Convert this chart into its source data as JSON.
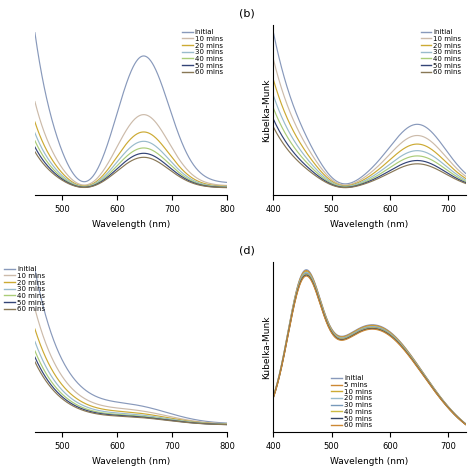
{
  "labels_ab": [
    "initial",
    "10 mins",
    "20 mins",
    "30 mins",
    "40 mins",
    "50 mins",
    "60 mins"
  ],
  "labels_d": [
    "initial",
    "5 mins",
    "10 mins",
    "20 mins",
    "30 mins",
    "40 mins",
    "50 mins",
    "60 mins"
  ],
  "colors_ab": [
    "#8899bb",
    "#ccbbaa",
    "#ccaa33",
    "#99bbcc",
    "#aacc77",
    "#334477",
    "#887755"
  ],
  "colors_d": [
    "#8899bb",
    "#cc8833",
    "#ccaa33",
    "#99bbcc",
    "#7799bb",
    "#ccbb44",
    "#334466",
    "#cc8833"
  ],
  "scales_a": [
    1.0,
    0.56,
    0.43,
    0.36,
    0.31,
    0.27,
    0.24
  ],
  "scales_b": [
    1.0,
    0.83,
    0.7,
    0.6,
    0.52,
    0.45,
    0.4
  ],
  "scales_c": [
    1.0,
    0.75,
    0.62,
    0.54,
    0.48,
    0.44,
    0.41
  ],
  "scales_d": [
    1.0,
    0.995,
    0.99,
    0.985,
    0.98,
    0.975,
    0.97,
    0.965
  ],
  "xlabel": "Wavelength (nm)",
  "ylabel_km": "Kubelka-Munk",
  "panel_b_label": "(b)",
  "panel_d_label": "(d)"
}
